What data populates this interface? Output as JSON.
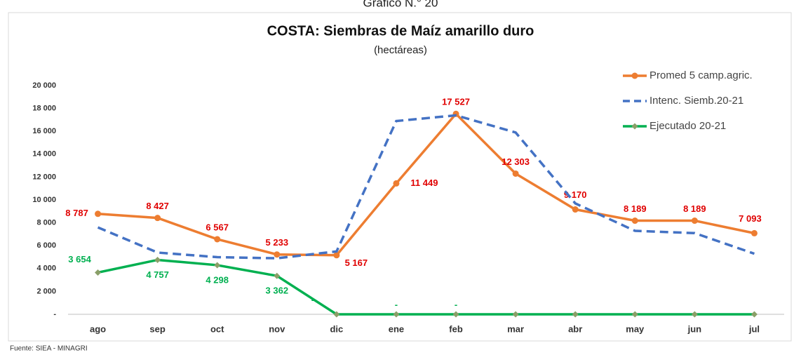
{
  "header": "Gráfico N.° 20",
  "source": "Fuente: SIEA - MINAGRI",
  "chart_data": {
    "type": "line",
    "title": "COSTA: Siembras de Maíz amarillo duro",
    "subtitle": "(hectáreas)",
    "categories": [
      "ago",
      "sep",
      "oct",
      "nov",
      "dic",
      "ene",
      "feb",
      "mar",
      "abr",
      "may",
      "jun",
      "jul"
    ],
    "ylim": [
      0,
      20000
    ],
    "yticks": [
      {
        "value": 0,
        "label": "-"
      },
      {
        "value": 2000,
        "label": "2 000"
      },
      {
        "value": 4000,
        "label": "4 000"
      },
      {
        "value": 6000,
        "label": "6 000"
      },
      {
        "value": 8000,
        "label": "8 000"
      },
      {
        "value": 10000,
        "label": "10 000"
      },
      {
        "value": 12000,
        "label": "12 000"
      },
      {
        "value": 14000,
        "label": "14 000"
      },
      {
        "value": 16000,
        "label": "16 000"
      },
      {
        "value": 18000,
        "label": "18 000"
      },
      {
        "value": 20000,
        "label": "20 000"
      }
    ],
    "legend": "top-right",
    "series": [
      {
        "name": "Promed 5 camp.agric.",
        "color": "#ED7D31",
        "style": "solid",
        "marker": "circle",
        "label_color": "#E00000",
        "values": [
          8787,
          8427,
          6567,
          5233,
          5167,
          11449,
          17527,
          12303,
          9170,
          8189,
          8189,
          7093
        ],
        "value_labels": [
          "8 787",
          "8 427",
          "6 567",
          "5 233",
          "5 167",
          "11 449",
          "17 527",
          "12 303",
          "9 170",
          "8 189",
          "8 189",
          "7 093"
        ]
      },
      {
        "name": "Intenc. Siemb.20-21",
        "color": "#4472C4",
        "style": "dashed",
        "values": [
          7600,
          5400,
          5000,
          4900,
          5500,
          16900,
          17400,
          15900,
          9700,
          7300,
          7100,
          5300
        ]
      },
      {
        "name": "Ejecutado 20-21",
        "color": "#00B050",
        "style": "solid",
        "marker": "diamond",
        "marker_color": "#8A9F68",
        "label_color": "#00B050",
        "values": [
          3654,
          4757,
          4298,
          3362,
          0,
          0,
          0,
          0,
          0,
          0,
          0,
          0
        ],
        "value_labels": [
          "3 654",
          "4 757",
          "4 298",
          "3 362",
          "-",
          "-",
          "-",
          null,
          null,
          null,
          null,
          null
        ]
      }
    ]
  }
}
